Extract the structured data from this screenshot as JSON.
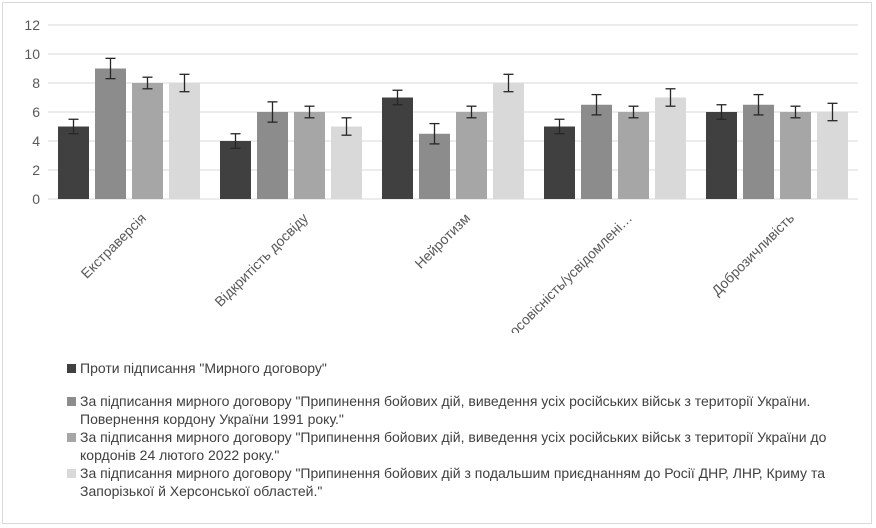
{
  "chart_data": {
    "type": "bar",
    "title": "",
    "xlabel": "",
    "ylabel": "",
    "ylim": [
      0,
      12
    ],
    "yticks": [
      0,
      2,
      4,
      6,
      8,
      10,
      12
    ],
    "grid": true,
    "legend_position": "bottom",
    "categories": [
      "Екстраверсія",
      "Відкритість досвіду",
      "Нейротизм",
      "Добросовісність/усвідомлені…",
      "Доброзичливість"
    ],
    "series": [
      {
        "name": "Проти підписання \"Мирного договору\"",
        "color": "#404040",
        "values": [
          5,
          4,
          7,
          5,
          6
        ],
        "errors": [
          0.5,
          0.5,
          0.5,
          0.5,
          0.5
        ]
      },
      {
        "name": "За підписання мирного договору \"Припинення бойових дій, виведення усіх російських військ з території України. Повернення кордону України 1991 року.\"",
        "color": "#8c8c8c",
        "values": [
          9,
          6,
          4.5,
          6.5,
          6.5
        ],
        "errors": [
          0.7,
          0.7,
          0.7,
          0.7,
          0.7
        ]
      },
      {
        "name": "За підписання мирного договору \"Припинення бойових дій, виведення усіх російських військ з території України до кордонів 24 лютого 2022 року.\"",
        "color": "#a6a6a6",
        "values": [
          8,
          6,
          6,
          6,
          6
        ],
        "errors": [
          0.4,
          0.4,
          0.4,
          0.4,
          0.4
        ]
      },
      {
        "name": "За підписання мирного договору \"Припинення бойових дій з подальшим приєднанням до Росії ДНР, ЛНР, Криму та Запорізької й Херсонської областей.\"",
        "color": "#d9d9d9",
        "values": [
          8,
          5,
          8,
          7,
          6
        ],
        "errors": [
          0.6,
          0.6,
          0.6,
          0.6,
          0.6
        ]
      }
    ]
  }
}
